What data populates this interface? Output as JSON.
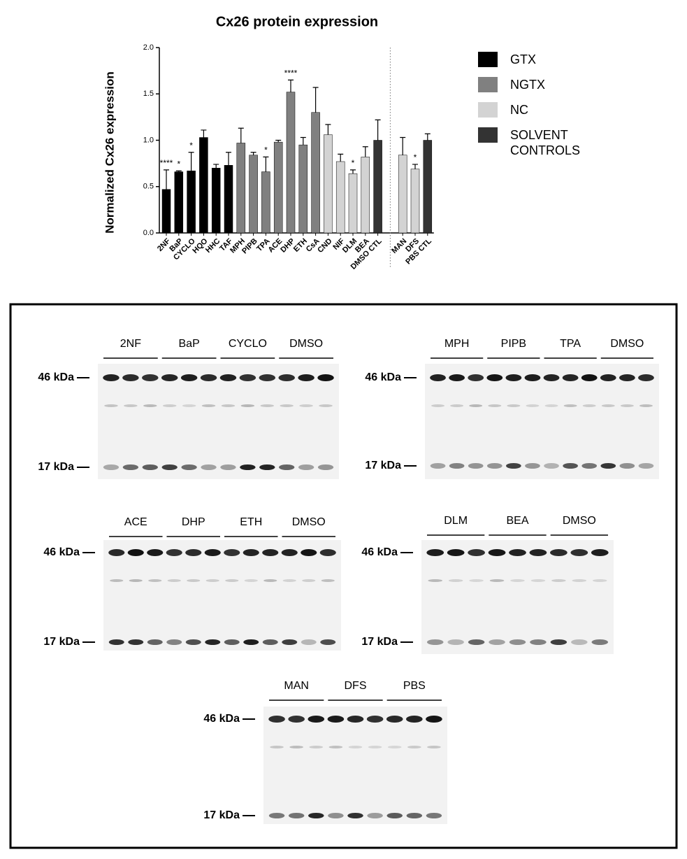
{
  "chart_data": {
    "type": "bar",
    "title": "Cx26 protein expression",
    "y_label": "Normalized Cx26 expression",
    "categories": [
      "2NF",
      "BaP",
      "CYCLO",
      "HQO",
      "HHC",
      "TAF",
      "MPH",
      "PIPB",
      "TPA",
      "ACE",
      "DHP",
      "ETH",
      "CsA",
      "CND",
      "NIF",
      "DLM",
      "BEA",
      "DMSO CTL",
      null,
      "MAN",
      "DFS",
      "PBS CTL"
    ],
    "series": [
      {
        "name": "GTX",
        "color": "#000000",
        "values": [
          0.47,
          0.66,
          0.67,
          1.03,
          0.7,
          0.73,
          null,
          null,
          null,
          null,
          null,
          null,
          null,
          null,
          null,
          null,
          null,
          null,
          null,
          null,
          null,
          null
        ],
        "errors": [
          0.21,
          0.01,
          0.2,
          0.08,
          0.04,
          0.14,
          null,
          null,
          null,
          null,
          null,
          null,
          null,
          null,
          null,
          null,
          null,
          null,
          null,
          null,
          null,
          null
        ]
      },
      {
        "name": "NGTX",
        "color": "#808080",
        "values": [
          null,
          null,
          null,
          null,
          null,
          null,
          0.97,
          0.84,
          0.66,
          0.98,
          1.52,
          0.95,
          1.3,
          null,
          null,
          null,
          null,
          null,
          null,
          null,
          null,
          null
        ],
        "errors": [
          null,
          null,
          null,
          null,
          null,
          null,
          0.16,
          0.03,
          0.16,
          0.02,
          0.13,
          0.08,
          0.27,
          null,
          null,
          null,
          null,
          null,
          null,
          null,
          null,
          null
        ]
      },
      {
        "name": "NC",
        "color": "#d3d3d3",
        "values": [
          null,
          null,
          null,
          null,
          null,
          null,
          null,
          null,
          null,
          null,
          null,
          null,
          null,
          1.06,
          0.77,
          0.64,
          0.82,
          null,
          null,
          0.84,
          0.69,
          null
        ],
        "errors": [
          null,
          null,
          null,
          null,
          null,
          null,
          null,
          null,
          null,
          null,
          null,
          null,
          null,
          0.11,
          0.08,
          0.04,
          0.11,
          null,
          null,
          0.19,
          0.05,
          null
        ]
      },
      {
        "name": "SOLVENT CONTROLS",
        "color": "#333333",
        "values": [
          null,
          null,
          null,
          null,
          null,
          null,
          null,
          null,
          null,
          null,
          null,
          null,
          null,
          null,
          null,
          null,
          null,
          1.0,
          null,
          null,
          null,
          1.0
        ],
        "errors": [
          null,
          null,
          null,
          null,
          null,
          null,
          null,
          null,
          null,
          null,
          null,
          null,
          null,
          null,
          null,
          null,
          null,
          0.22,
          null,
          null,
          null,
          0.07
        ]
      }
    ],
    "annotations": [
      "****",
      "*",
      "*",
      null,
      null,
      null,
      null,
      null,
      "*",
      null,
      "****",
      null,
      null,
      null,
      null,
      "*",
      null,
      null,
      null,
      null,
      "*",
      null
    ],
    "ylim": [
      0,
      2.0
    ],
    "yticks": [
      {
        "value": 0,
        "label": "0.0"
      },
      0.5,
      {
        "value": 1,
        "label": "1.0"
      },
      1.5,
      {
        "value": 2,
        "label": "2.0"
      }
    ]
  },
  "blots": [
    {
      "groups": [
        "2NF",
        "BaP",
        "CYCLO",
        "DMSO"
      ],
      "markers": [
        "46 kDa",
        "17 kDa"
      ]
    },
    {
      "groups": [
        "MPH",
        "PIPB",
        "TPA",
        "DMSO"
      ],
      "markers": [
        "46 kDa",
        "17 kDa"
      ]
    },
    {
      "groups": [
        "ACE",
        "DHP",
        "ETH",
        "DMSO"
      ],
      "markers": [
        "46 kDa",
        "17 kDa"
      ]
    },
    {
      "groups": [
        "DLM",
        "BEA",
        "DMSO"
      ],
      "markers": [
        "46 kDa",
        "17 kDa"
      ]
    },
    {
      "groups": [
        "MAN",
        "DFS",
        "PBS"
      ],
      "markers": [
        "46 kDa",
        "17 kDa"
      ]
    }
  ]
}
